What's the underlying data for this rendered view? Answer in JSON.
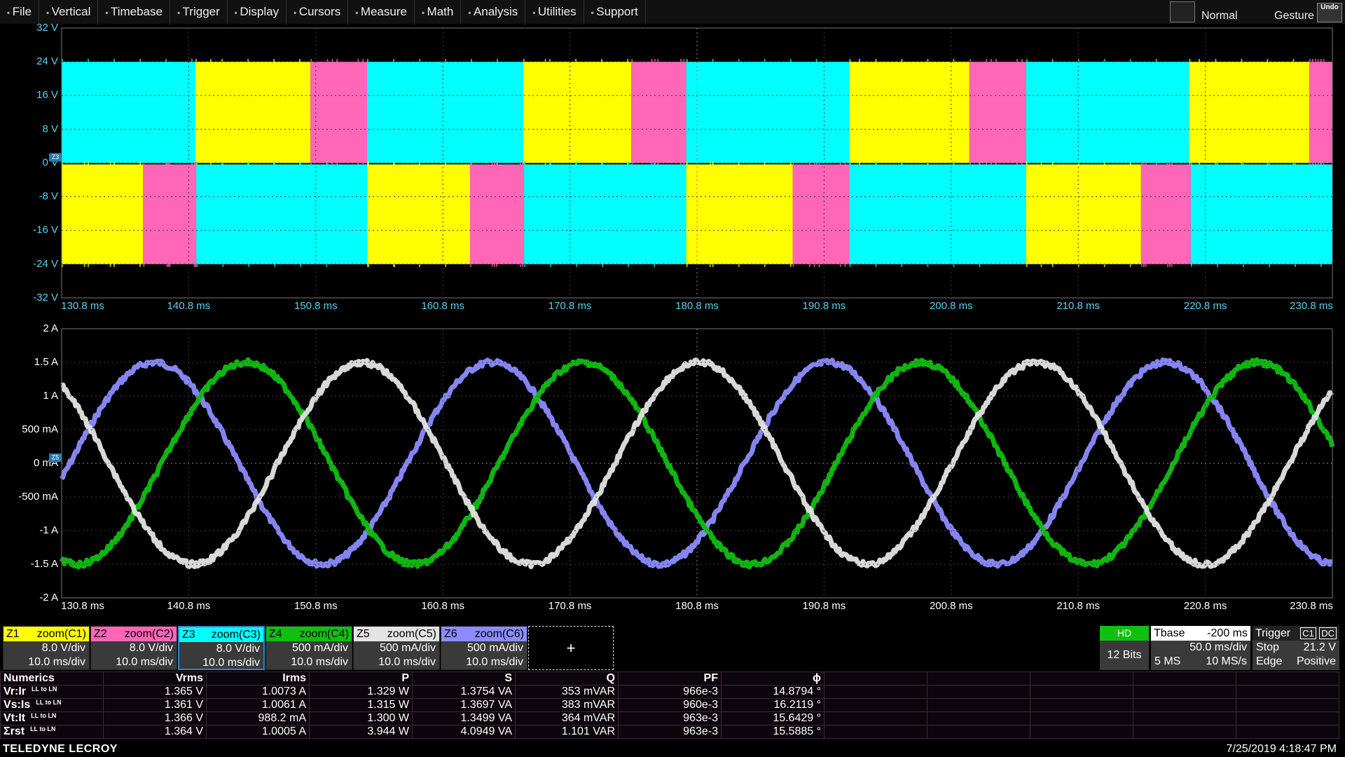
{
  "menu": [
    "File",
    "Vertical",
    "Timebase",
    "Trigger",
    "Display",
    "Cursors",
    "Measure",
    "Math",
    "Analysis",
    "Utilities",
    "Support"
  ],
  "mode": "Normal",
  "gesture": "Gesture",
  "undo": "Undo",
  "grid_top": {
    "marker": "Z3",
    "y_labels": [
      "32 V",
      "24 V",
      "16 V",
      "8 V",
      "0 V",
      "-8 V",
      "-16 V",
      "-24 V",
      "-32 V"
    ],
    "x_labels": [
      "130.8 ms",
      "140.8 ms",
      "150.8 ms",
      "160.8 ms",
      "170.8 ms",
      "180.8 ms",
      "190.8 ms",
      "200.8 ms",
      "210.8 ms",
      "220.8 ms",
      "230.8 ms"
    ]
  },
  "grid_bottom": {
    "marker": "Z5",
    "y_labels": [
      "2 A",
      "1.5 A",
      "1 A",
      "500 mA",
      "0 mA",
      "-500 mA",
      "-1 A",
      "-1.5 A",
      "-2 A"
    ],
    "x_labels": [
      "130.8 ms",
      "140.8 ms",
      "150.8 ms",
      "160.8 ms",
      "170.8 ms",
      "180.8 ms",
      "190.8 ms",
      "200.8 ms",
      "210.8 ms",
      "220.8 ms",
      "230.8 ms"
    ]
  },
  "channels": [
    {
      "id": "Z1",
      "source": "zoom(C1)",
      "vdiv": "8.0 V/div",
      "tdiv": "10.0 ms/div",
      "color": "#ffff00"
    },
    {
      "id": "Z2",
      "source": "zoom(C2)",
      "vdiv": "8.0 V/div",
      "tdiv": "10.0 ms/div",
      "color": "#ff66b8"
    },
    {
      "id": "Z3",
      "source": "zoom(C3)",
      "vdiv": "8.0 V/div",
      "tdiv": "10.0 ms/div",
      "color": "#00ffff"
    },
    {
      "id": "Z4",
      "source": "zoom(C4)",
      "vdiv": "500 mA/div",
      "tdiv": "10.0 ms/div",
      "color": "#10c010"
    },
    {
      "id": "Z5",
      "source": "zoom(C5)",
      "vdiv": "500 mA/div",
      "tdiv": "10.0 ms/div",
      "color": "#e4e4e4"
    },
    {
      "id": "Z6",
      "source": "zoom(C6)",
      "vdiv": "500 mA/div",
      "tdiv": "10.0 ms/div",
      "color": "#8c8cff"
    }
  ],
  "add": "+",
  "hd": {
    "badge": "HD",
    "bits": "12 Bits"
  },
  "tbase": {
    "label": "Tbase",
    "offset": "-200 ms",
    "tdiv": "50.0 ms/div",
    "samples": "5 MS",
    "rate": "10 MS/s"
  },
  "trigger": {
    "label": "Trigger",
    "ch": "C1",
    "coupling": "DC",
    "state": "Stop",
    "level": "21.2 V",
    "type": "Edge",
    "slope": "Positive"
  },
  "numerics": {
    "title": "Numerics",
    "headers": [
      "Vrms",
      "Irms",
      "P",
      "S",
      "Q",
      "PF",
      "ϕ"
    ],
    "rows": [
      {
        "label": "Vr:Ir",
        "sub": "LL to LN",
        "cells": [
          "1.365 V",
          "1.0073 A",
          "1.329 W",
          "1.3754 VA",
          "353 mVAR",
          "966e-3",
          "14.8794 °"
        ]
      },
      {
        "label": "Vs:Is",
        "sub": "LL to LN",
        "cells": [
          "1.361 V",
          "1.0061 A",
          "1.315 W",
          "1.3697 VA",
          "383 mVAR",
          "960e-3",
          "16.2119 °"
        ]
      },
      {
        "label": "Vt:It",
        "sub": "LL to LN",
        "cells": [
          "1.366 V",
          "988.2 mA",
          "1.300 W",
          "1.3499 VA",
          "364 mVAR",
          "963e-3",
          "15.6429 °"
        ]
      },
      {
        "label": "Σrst",
        "sub": "LL to LN",
        "cells": [
          "1.364 V",
          "1.0005 A",
          "3.944 W",
          "4.0949 VA",
          "1.101 VAR",
          "963e-3",
          "15.5885 °"
        ]
      }
    ]
  },
  "footer": {
    "brand": "TELEDYNE LECROY",
    "datetime": "7/25/2019 4:18:47 PM"
  }
}
